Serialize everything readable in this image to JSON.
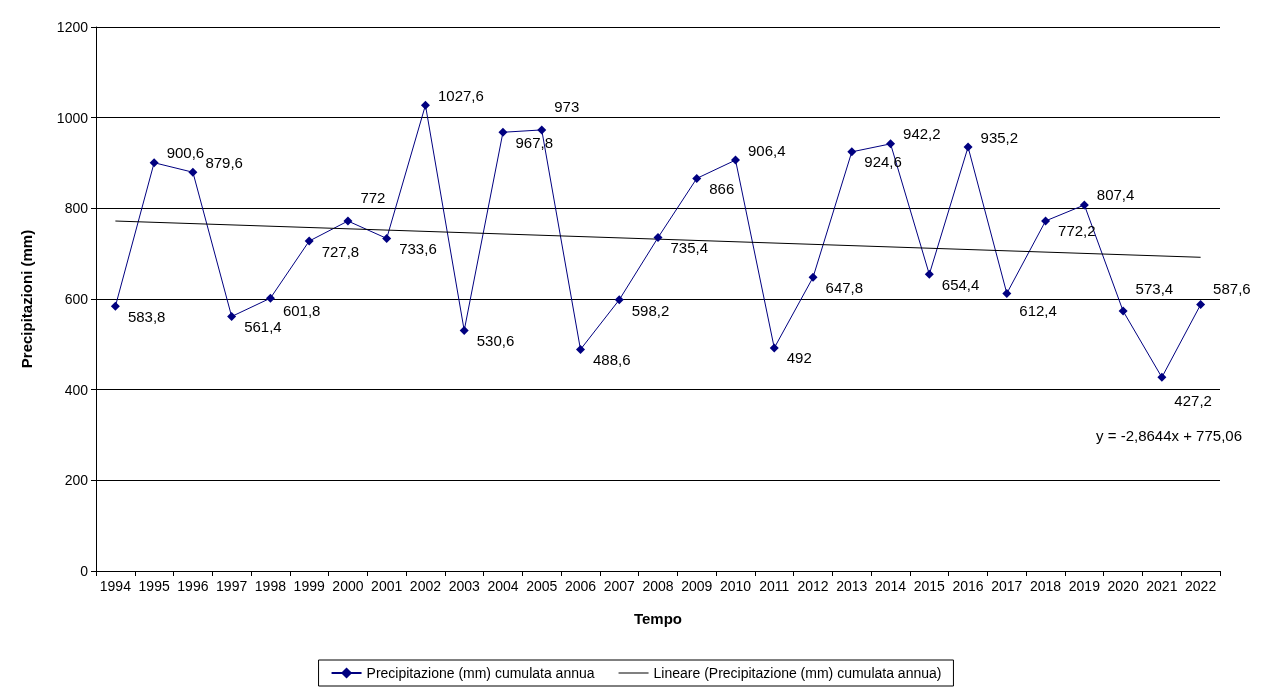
{
  "chart_data": {
    "type": "line",
    "xlabel": "Tempo",
    "ylabel": "Precipitazioni (mm)",
    "categories": [
      "1994",
      "1995",
      "1996",
      "1997",
      "1998",
      "1999",
      "2000",
      "2001",
      "2002",
      "2003",
      "2004",
      "2005",
      "2006",
      "2007",
      "2008",
      "2009",
      "2010",
      "2011",
      "2012",
      "2013",
      "2014",
      "2015",
      "2016",
      "2017",
      "2018",
      "2019",
      "2020",
      "2021",
      "2022"
    ],
    "series": [
      {
        "name": "Precipitazione (mm) cumulata annua",
        "color": "#000080",
        "marker": "diamond",
        "values": [
          583.8,
          900.6,
          879.6,
          561.4,
          601.8,
          727.8,
          772,
          733.6,
          1027.6,
          530.6,
          967.8,
          973,
          488.6,
          598.2,
          735.4,
          866,
          906.4,
          492,
          647.8,
          924.6,
          942.2,
          654.4,
          935.2,
          612.4,
          772.2,
          807.4,
          573.4,
          427.2,
          587.6
        ],
        "value_labels": [
          "583,8",
          "900,6",
          "879,6",
          "561,4",
          "601,8",
          "727,8",
          "772",
          "733,6",
          "1027,6",
          "530,6",
          "967,8",
          "973",
          "488,6",
          "598,2",
          "735,4",
          "866",
          "906,4",
          "492",
          "647,8",
          "924,6",
          "942,2",
          "654,4",
          "935,2",
          "612,4",
          "772,2",
          "807,4",
          "573,4",
          "427,2",
          "587,6"
        ]
      },
      {
        "name": "Lineare (Precipitazione (mm) cumulata annua)",
        "color": "#000000",
        "marker": "none",
        "values": [
          772,
          null,
          null,
          null,
          null,
          null,
          null,
          null,
          null,
          null,
          null,
          null,
          null,
          null,
          null,
          null,
          null,
          null,
          null,
          null,
          null,
          null,
          null,
          null,
          null,
          null,
          null,
          null,
          692
        ]
      }
    ],
    "ylim": [
      0,
      1200
    ],
    "yticks": [
      0,
      200,
      400,
      600,
      800,
      1000,
      1200
    ],
    "grid": "y",
    "legend": "bottom",
    "line_style": "solid",
    "annotations": [
      "y = -2,8644x + 775,06"
    ]
  }
}
